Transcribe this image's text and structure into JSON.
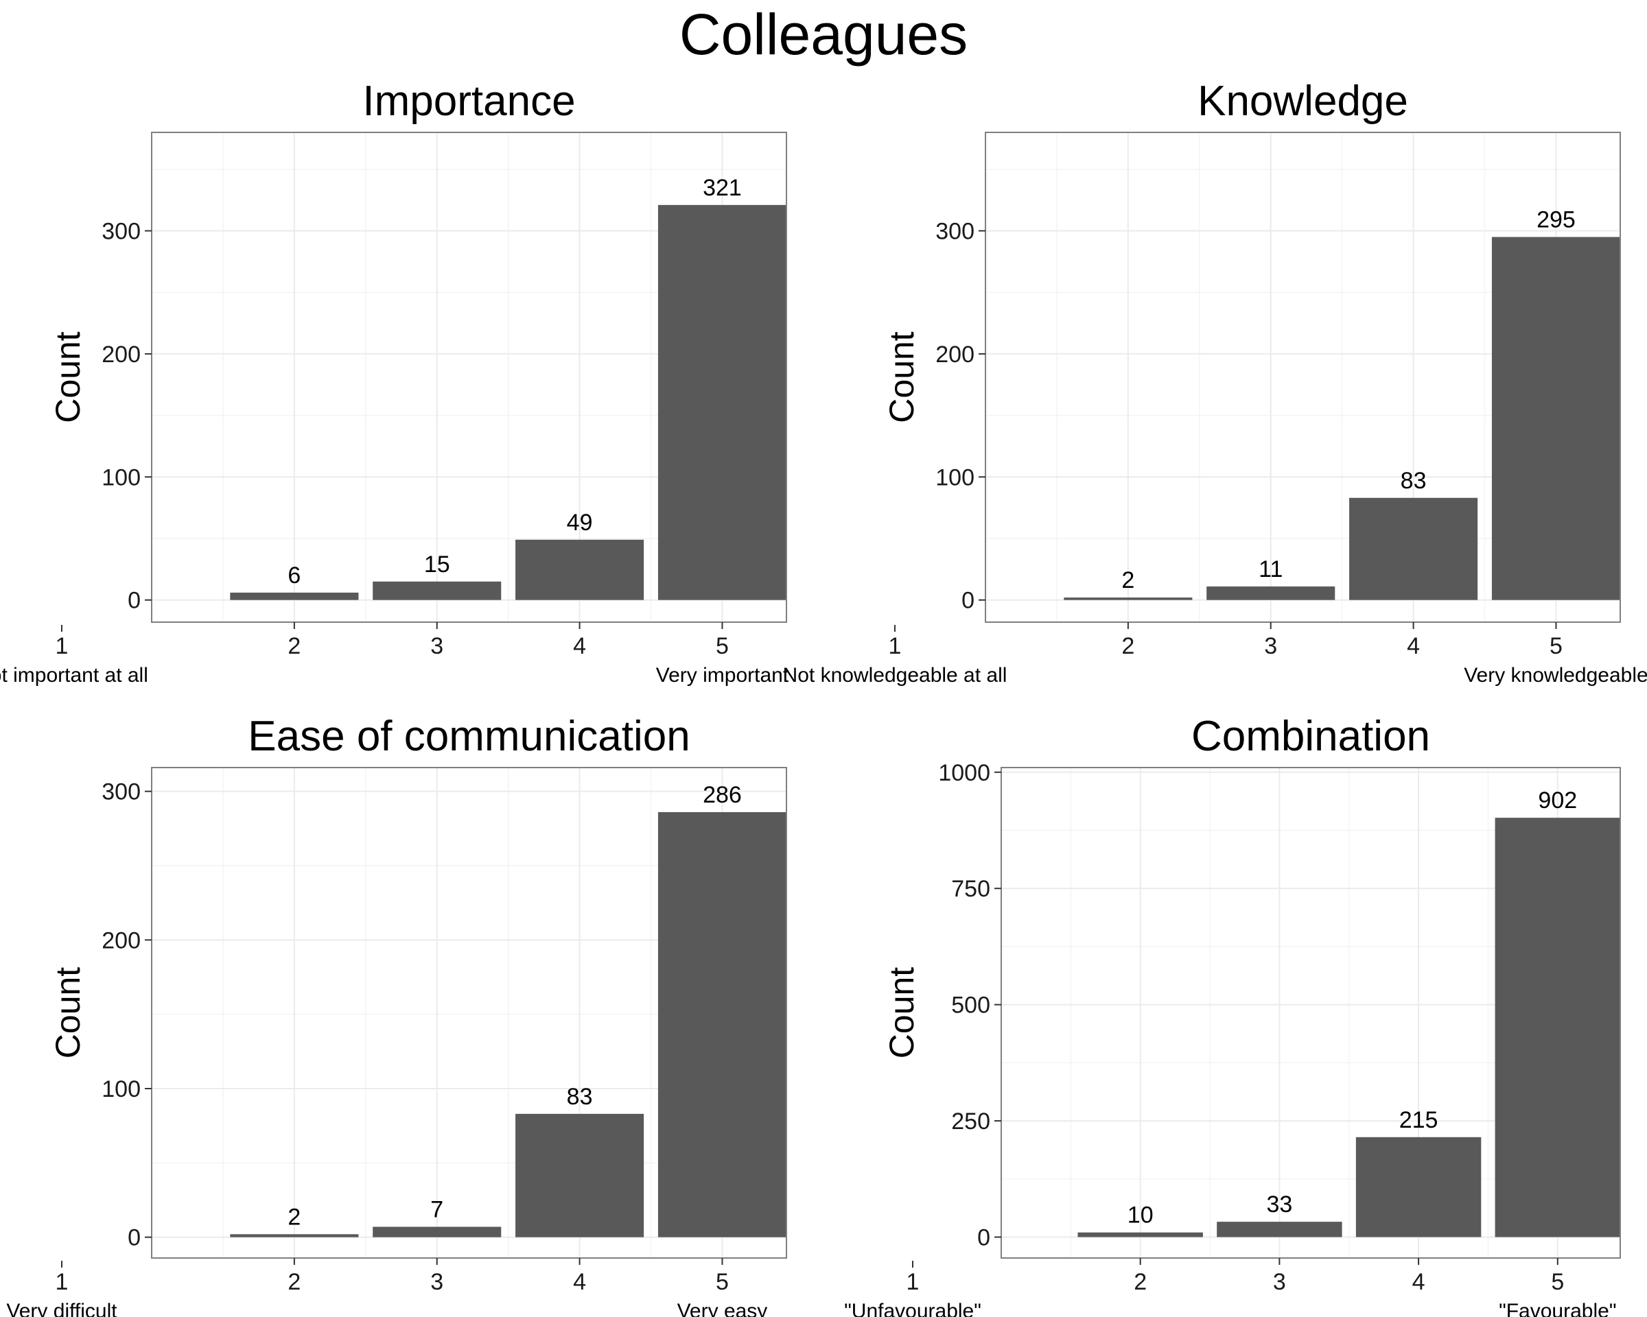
{
  "title": "Colleagues",
  "chart_data": [
    {
      "type": "bar",
      "title": "Importance",
      "categories": [
        "2",
        "3",
        "4",
        "5"
      ],
      "values": [
        6,
        15,
        49,
        321
      ],
      "labels": [
        "6",
        "15",
        "49",
        "321"
      ],
      "xlabel": "",
      "ylabel": "Count",
      "yticks": [
        0,
        100,
        200,
        300
      ],
      "ylim": [
        -18,
        380
      ],
      "xlim": [
        1,
        5.45
      ],
      "x_origin_tick": "1",
      "scale_low": "Not important at all",
      "scale_high": "Very important",
      "grid": true
    },
    {
      "type": "bar",
      "title": "Knowledge",
      "categories": [
        "2",
        "3",
        "4",
        "5"
      ],
      "values": [
        2,
        11,
        83,
        295
      ],
      "labels": [
        "2",
        "11",
        "83",
        "295"
      ],
      "xlabel": "",
      "ylabel": "Count",
      "yticks": [
        0,
        100,
        200,
        300
      ],
      "ylim": [
        -18,
        380
      ],
      "xlim": [
        1,
        5.45
      ],
      "x_origin_tick": "1",
      "scale_low": "Not knowledgeable at all",
      "scale_high": "Very knowledgeable",
      "grid": true
    },
    {
      "type": "bar",
      "title": "Ease of communication",
      "categories": [
        "2",
        "3",
        "4",
        "5"
      ],
      "values": [
        2,
        7,
        83,
        286
      ],
      "labels": [
        "2",
        "7",
        "83",
        "286"
      ],
      "xlabel": "",
      "ylabel": "Count",
      "yticks": [
        0,
        100,
        200,
        300
      ],
      "ylim": [
        -14,
        316
      ],
      "xlim": [
        1,
        5.45
      ],
      "x_origin_tick": "1",
      "scale_low": "Very difficult",
      "scale_high": "Very easy",
      "grid": true
    },
    {
      "type": "bar",
      "title": "Combination",
      "categories": [
        "2",
        "3",
        "4",
        "5"
      ],
      "values": [
        10,
        33,
        215,
        902
      ],
      "labels": [
        "10",
        "33",
        "215",
        "902"
      ],
      "xlabel": "",
      "ylabel": "Count",
      "yticks": [
        0,
        250,
        500,
        750,
        1000
      ],
      "ylim": [
        -45,
        1010
      ],
      "xlim": [
        1,
        5.45
      ],
      "x_origin_tick": "1",
      "scale_low": "\"Unfavourable\"",
      "scale_high": "\"Favourable\"",
      "grid": true
    }
  ],
  "colors": {
    "bar": "#595959",
    "grid_major": "#ebebeb",
    "grid_minor": "#f4f4f4",
    "panel_border": "#7f7f7f"
  }
}
